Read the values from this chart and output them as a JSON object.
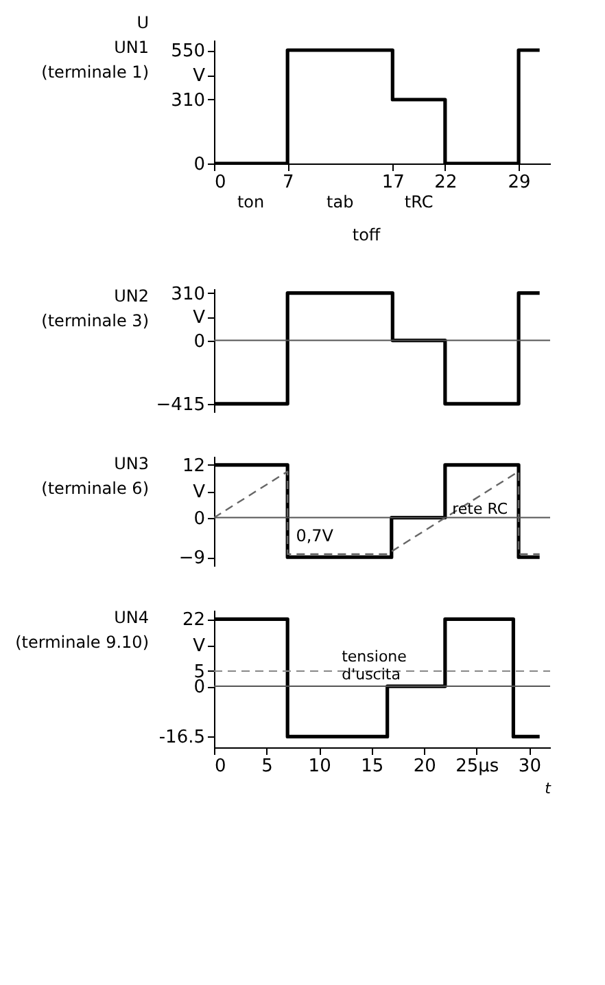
{
  "chart_data": [
    {
      "type": "step",
      "title": "U",
      "ylabel": "UN1",
      "subtitle": "(terminale 1)",
      "xlim": [
        0,
        32
      ],
      "xticks": [
        0,
        7,
        17,
        22,
        29
      ],
      "ylim": [
        0,
        600
      ],
      "yticks": [
        0,
        310,
        {
          "value": 430,
          "label": "V"
        },
        550
      ],
      "grid": false,
      "series": [
        {
          "color": "#000000",
          "x": [
            0,
            7,
            17,
            22,
            29,
            31
          ],
          "values": [
            0,
            550,
            310,
            0,
            550,
            550
          ]
        }
      ],
      "annotations": [
        "ton",
        "tab",
        "tRC",
        "toff"
      ]
    },
    {
      "type": "step",
      "ylabel": "UN2",
      "subtitle": "(terminale 3)",
      "xlim": [
        0,
        32
      ],
      "ylim": [
        -470,
        340
      ],
      "yticks": [
        -415,
        0,
        {
          "value": 155,
          "label": "V"
        },
        310
      ],
      "tick_labels": "y",
      "grid": false,
      "ref_lines": [
        {
          "axis": "y",
          "value": 0
        }
      ],
      "series": [
        {
          "color": "#000000",
          "x": [
            0,
            7,
            17,
            22,
            29,
            31
          ],
          "values": [
            -415,
            310,
            0,
            -415,
            310,
            310
          ]
        }
      ]
    },
    {
      "type": "step",
      "ylabel": "UN3",
      "subtitle": "(terminale 6)",
      "xlim": [
        0,
        32
      ],
      "ylim": [
        -11,
        14
      ],
      "yticks": [
        -9,
        0,
        {
          "value": 6,
          "label": "V"
        },
        12
      ],
      "tick_labels": "y",
      "grid": false,
      "ref_lines": [
        {
          "axis": "y",
          "value": 0
        }
      ],
      "annotations": [
        "0,7V"
      ],
      "series": [
        {
          "color": "#000000",
          "x": [
            0,
            7,
            16.9,
            22,
            29,
            31
          ],
          "values": [
            12,
            -9,
            0,
            12,
            -9,
            -9
          ]
        },
        {
          "name": "rete RC",
          "type": "line",
          "line_style": "dashed",
          "color": "#666666",
          "x": [
            0,
            7,
            7,
            16.5,
            29,
            29,
            31
          ],
          "values": [
            0,
            10.5,
            -8.3,
            -8.3,
            10.5,
            -8.3,
            -8.3
          ]
        }
      ]
    },
    {
      "type": "step",
      "ylabel": "UN4",
      "subtitle": "(terminale 9.10)",
      "xlabel": "t",
      "xlim": [
        0,
        32
      ],
      "xticks": [
        0,
        5,
        10,
        15,
        20,
        {
          "value": 25,
          "label": "25μs"
        },
        30
      ],
      "ylim": [
        -20,
        25
      ],
      "yticks": [
        {
          "value": -16.5,
          "label": "-16.5"
        },
        0,
        5,
        {
          "value": 13.5,
          "label": "V"
        },
        22
      ],
      "grid": false,
      "ref_lines": [
        {
          "axis": "y",
          "value": 0
        },
        {
          "axis": "y",
          "value": 5,
          "label": "tensione d'uscita",
          "line_style": "dashed",
          "color": "#888888"
        }
      ],
      "series": [
        {
          "color": "#000000",
          "x": [
            0,
            7,
            16.5,
            22,
            28.5,
            31
          ],
          "values": [
            22,
            -16.5,
            0,
            22,
            -16.5,
            -16.5
          ]
        }
      ]
    }
  ]
}
